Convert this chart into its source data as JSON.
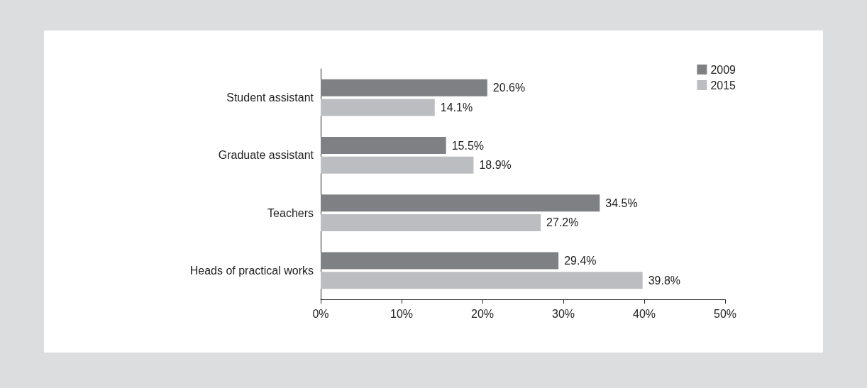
{
  "chart_data": {
    "type": "bar",
    "orientation": "horizontal",
    "categories": [
      "Student assistant",
      "Graduate assistant",
      "Teachers",
      "Heads of practical works"
    ],
    "series": [
      {
        "name": "2009",
        "color": "#7f8083",
        "values": [
          20.6,
          15.5,
          34.5,
          29.4
        ],
        "value_labels": [
          "20.6%",
          "15.5%",
          "34.5%",
          "29.4%"
        ]
      },
      {
        "name": "2015",
        "color": "#bcbdc0",
        "values": [
          14.1,
          18.9,
          27.2,
          39.8
        ],
        "value_labels": [
          "14.1%",
          "18.9%",
          "27.2%",
          "39.8%"
        ]
      }
    ],
    "xlim": [
      0,
      50
    ],
    "xticks": [
      {
        "value": 0,
        "label": "0%"
      },
      {
        "value": 10,
        "label": "10%"
      },
      {
        "value": 20,
        "label": "20%"
      },
      {
        "value": 30,
        "label": "30%"
      },
      {
        "value": 40,
        "label": "40%"
      },
      {
        "value": 50,
        "label": "50%"
      }
    ],
    "grid": false,
    "legend": "top right"
  }
}
